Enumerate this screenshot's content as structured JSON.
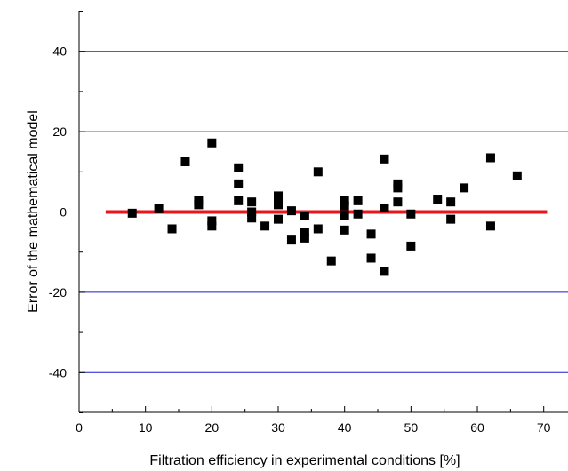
{
  "chart_data": {
    "type": "scatter",
    "title": "",
    "xlabel": "Filtration efficiency in experimental conditions [%]",
    "ylabel": "Error of the mathematical model",
    "xlim": [
      0,
      75
    ],
    "ylim": [
      -50,
      50
    ],
    "x_ticks": [
      0,
      10,
      20,
      30,
      40,
      50,
      60,
      70
    ],
    "y_ticks": [
      -40,
      -20,
      0,
      20,
      40
    ],
    "grid": "horizontal lines at major y ticks",
    "colors": {
      "points": "#000000",
      "zero_line": "#e8161b",
      "grid": "#1a1ad6",
      "axis": "#000000"
    },
    "zero_line": {
      "x_start": 4,
      "x_end": 70.5,
      "y": 0
    },
    "points": [
      [
        8,
        -0.3
      ],
      [
        12,
        0.8
      ],
      [
        14,
        -4.2
      ],
      [
        16,
        12.5
      ],
      [
        18,
        2.8
      ],
      [
        18,
        1.8
      ],
      [
        20,
        17.2
      ],
      [
        20,
        -2.2
      ],
      [
        20,
        -3.5
      ],
      [
        24,
        11.0
      ],
      [
        24,
        7.0
      ],
      [
        24,
        2.8
      ],
      [
        26,
        2.5
      ],
      [
        26,
        0.0
      ],
      [
        26,
        -1.5
      ],
      [
        28,
        -3.5
      ],
      [
        30,
        4.0
      ],
      [
        30,
        2.8
      ],
      [
        30,
        1.8
      ],
      [
        30,
        -1.8
      ],
      [
        32,
        0.3
      ],
      [
        32,
        -7.0
      ],
      [
        34,
        -1.0
      ],
      [
        34,
        -5.0
      ],
      [
        34,
        -6.5
      ],
      [
        36,
        10.0
      ],
      [
        36,
        -4.2
      ],
      [
        38,
        -12.2
      ],
      [
        40,
        2.8
      ],
      [
        40,
        1.5
      ],
      [
        40,
        -0.8
      ],
      [
        40,
        -4.5
      ],
      [
        42,
        2.8
      ],
      [
        42,
        -0.5
      ],
      [
        44,
        -5.5
      ],
      [
        44,
        -11.5
      ],
      [
        46,
        13.2
      ],
      [
        46,
        1.0
      ],
      [
        46,
        -14.8
      ],
      [
        48,
        7.0
      ],
      [
        48,
        6.0
      ],
      [
        48,
        2.5
      ],
      [
        50,
        -0.5
      ],
      [
        50,
        -8.5
      ],
      [
        54,
        3.2
      ],
      [
        56,
        2.5
      ],
      [
        56,
        -1.8
      ],
      [
        58,
        6.0
      ],
      [
        62,
        13.5
      ],
      [
        62,
        -3.5
      ],
      [
        66,
        9.0
      ]
    ]
  }
}
